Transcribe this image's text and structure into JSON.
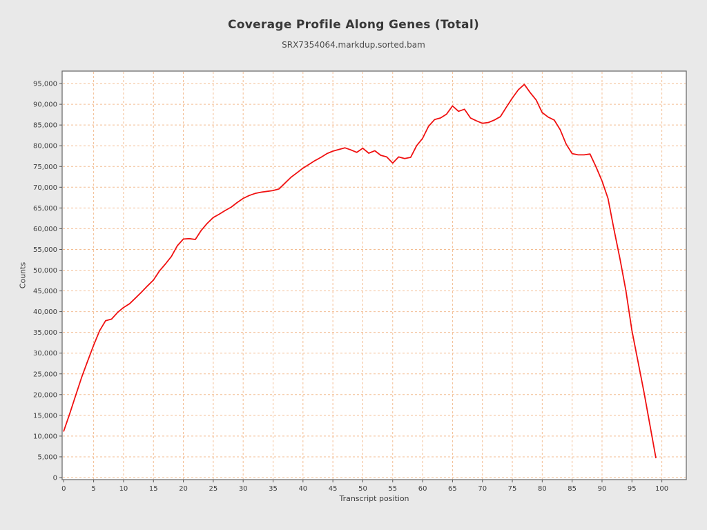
{
  "page": {
    "background": "#e9e9e9"
  },
  "header": {
    "title": "Coverage Profile Along Genes (Total)",
    "subtitle": "SRX7354064.markdup.sorted.bam"
  },
  "chart_data": {
    "type": "line",
    "title": "Coverage Profile Along Genes (Total)",
    "subtitle": "SRX7354064.markdup.sorted.bam",
    "xlabel": "Transcript position",
    "ylabel": "Counts",
    "x_start": 0,
    "x_step": 1,
    "x_ticks": [
      0,
      5,
      10,
      15,
      20,
      25,
      30,
      35,
      40,
      45,
      50,
      55,
      60,
      65,
      70,
      75,
      80,
      85,
      90,
      95,
      100
    ],
    "y_ticks": [
      0,
      5000,
      10000,
      15000,
      20000,
      25000,
      30000,
      35000,
      40000,
      45000,
      50000,
      55000,
      60000,
      65000,
      70000,
      75000,
      80000,
      85000,
      90000,
      95000
    ],
    "xlim": [
      -0.3,
      104
    ],
    "ylim": [
      0,
      98000
    ],
    "grid": {
      "show": true,
      "style": "dashed",
      "color": "#f3bd92"
    },
    "plot_bg": "#ffffff",
    "border_color": "#6e6e6e",
    "tick_color": "#555555",
    "label_color": "#3d3d3d",
    "series": [
      {
        "name": "SRX7354064.markdup.sorted.bam",
        "color": "#f01010",
        "values": [
          11200,
          15400,
          19800,
          24200,
          28100,
          31900,
          35400,
          37800,
          38200,
          39800,
          41000,
          41900,
          43300,
          44700,
          46200,
          47600,
          49800,
          51500,
          53300,
          55900,
          57500,
          57600,
          57400,
          59600,
          61300,
          62700,
          63500,
          64400,
          65200,
          66300,
          67300,
          68000,
          68500,
          68800,
          69000,
          69200,
          69600,
          71000,
          72400,
          73500,
          74600,
          75500,
          76400,
          77200,
          78100,
          78700,
          79100,
          79500,
          79000,
          78400,
          79400,
          78200,
          78800,
          77700,
          77300,
          75800,
          77300,
          76900,
          77200,
          80000,
          81800,
          84700,
          86300,
          86700,
          87600,
          89600,
          88300,
          88800,
          86700,
          86000,
          85400,
          85600,
          86200,
          87000,
          89300,
          91500,
          93500,
          94800,
          92800,
          91000,
          88000,
          86900,
          86200,
          83900,
          80400,
          78100,
          77800,
          77800,
          78000,
          74900,
          71500,
          67300,
          59800,
          52700,
          45000,
          35400,
          28100,
          20700,
          12700,
          4800
        ]
      }
    ]
  }
}
